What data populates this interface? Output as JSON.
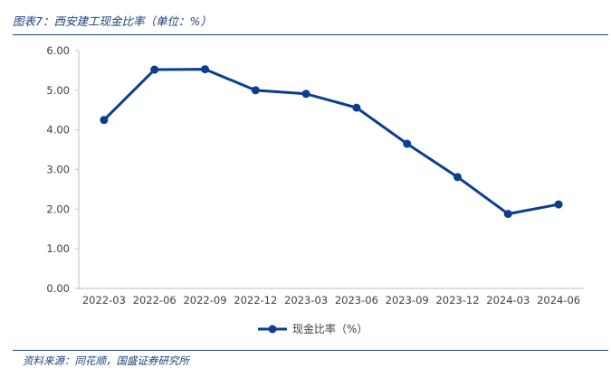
{
  "figure": {
    "title": "图表7：西安建工现金比率（单位：%）",
    "source": "资料来源：同花顺，国盛证券研究所"
  },
  "colors": {
    "line": "#0b3d91",
    "axis": "#bfbfbf",
    "brand": "#1f3f7a"
  },
  "chart_data": {
    "type": "line",
    "title": "",
    "xlabel": "",
    "ylabel": "",
    "categories": [
      "2022-03",
      "2022-06",
      "2022-09",
      "2022-12",
      "2023-03",
      "2023-06",
      "2023-09",
      "2023-12",
      "2024-03",
      "2024-06"
    ],
    "series": [
      {
        "name": "现金比率（%）",
        "values": [
          4.25,
          5.52,
          5.53,
          5.0,
          4.91,
          4.56,
          3.65,
          2.81,
          1.88,
          2.12
        ]
      }
    ],
    "ylim": [
      0,
      6
    ],
    "yticks": [
      "0.00",
      "1.00",
      "2.00",
      "3.00",
      "4.00",
      "5.00",
      "6.00"
    ],
    "grid": false,
    "legend": "bottom-center"
  }
}
